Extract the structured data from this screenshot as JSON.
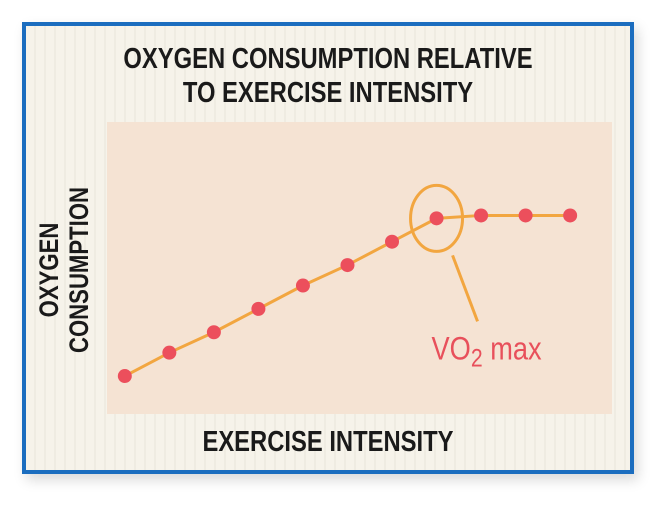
{
  "chart_data": {
    "type": "line",
    "title": [
      "OXYGEN CONSUMPTION RELATIVE",
      "TO EXERCISE INTENSITY"
    ],
    "xlabel": "EXERCISE INTENSITY",
    "ylabel": [
      "OXYGEN",
      "CONSUMPTION"
    ],
    "x": [
      1,
      2,
      3,
      4,
      5,
      6,
      7,
      8,
      9,
      10,
      11
    ],
    "y": [
      13,
      21,
      28,
      36,
      44,
      51,
      59,
      67,
      68,
      68,
      68
    ],
    "xlim": [
      0.6,
      11.94
    ],
    "ylim": [
      0,
      100
    ],
    "grid": false,
    "annotation": {
      "text_main": "VO",
      "text_sub": "2",
      "text_tail": " max",
      "point_index": 7
    },
    "colors": {
      "line": "#f2a640",
      "points": "#ec4f5c",
      "plot_bg": "#f5e3d3",
      "frame": "#1b6dbf",
      "annotation_text": "#e8505b"
    }
  }
}
